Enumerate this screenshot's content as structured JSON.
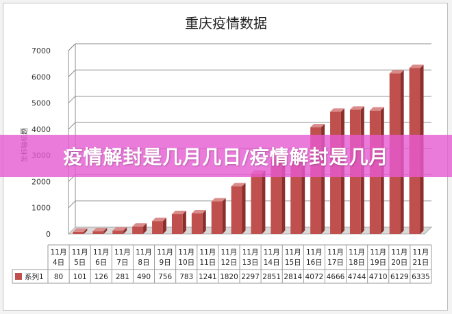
{
  "banner_text": "疫情解封是几月几日/疫情解封是几月",
  "colors": {
    "bar_front": "#c0504d",
    "bar_side": "#8b2f2c",
    "bar_top": "#d98c8a",
    "grid": "#8c8c8c",
    "banner": "#e65ad2"
  },
  "chart_data": {
    "type": "bar",
    "title": "重庆疫情数据",
    "ylabel": "坐标轴标题",
    "ylim": [
      0,
      7000
    ],
    "yticks": [
      0,
      1000,
      2000,
      3000,
      4000,
      5000,
      6000,
      7000
    ],
    "categories": [
      "11月4日",
      "11月5日",
      "11月6日",
      "11月7日",
      "11月8日",
      "11月9日",
      "11月10日",
      "11月11日",
      "11月12日",
      "11月13日",
      "11月14日",
      "11月15日",
      "11月16日",
      "11月17日",
      "11月18日",
      "11月19日",
      "11月20日",
      "11月21日"
    ],
    "series": [
      {
        "name": "系列1",
        "values": [
          80,
          101,
          126,
          281,
          490,
          756,
          783,
          1241,
          1820,
          2297,
          2851,
          2814,
          4072,
          4666,
          4744,
          4710,
          6129,
          6335
        ]
      }
    ],
    "grid": true,
    "legend": "data-table"
  }
}
